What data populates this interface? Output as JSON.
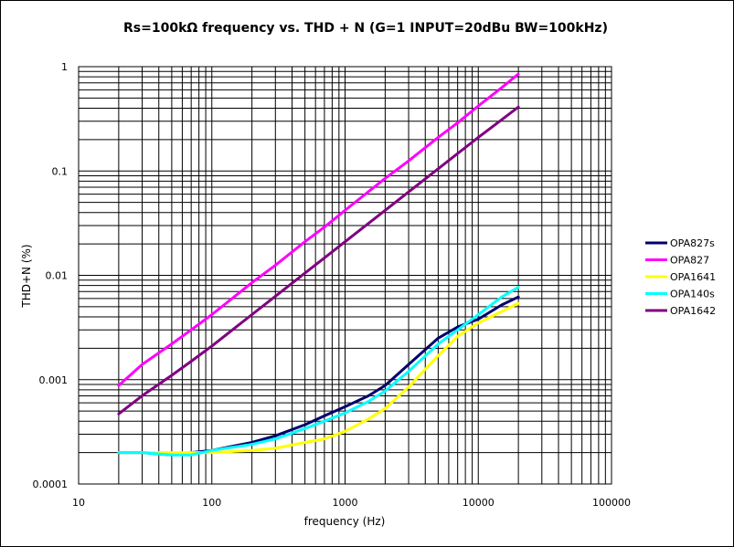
{
  "chart_data": {
    "type": "line",
    "title": "Rs=100kΩ frequency vs. THD + N (G=1 INPUT=20dBu BW=100kHz)",
    "xlabel": "frequency (Hz)",
    "ylabel": "THD+N (%)",
    "xscale": "log",
    "yscale": "log",
    "xlim": [
      10,
      100000
    ],
    "ylim": [
      0.0001,
      1
    ],
    "xticks": [
      10,
      100,
      1000,
      10000,
      100000
    ],
    "xtick_labels": [
      "10",
      "100",
      "1000",
      "10000",
      "100000"
    ],
    "yticks": [
      0.0001,
      0.001,
      0.01,
      0.1,
      1
    ],
    "ytick_labels": [
      "0.0001",
      "0.001",
      "0.01",
      "0.1",
      "1"
    ],
    "grid": true,
    "legend_position": "right",
    "series": [
      {
        "name": "OPA827s",
        "color": "#00006e",
        "x": [
          20,
          30,
          50,
          70,
          100,
          200,
          300,
          500,
          700,
          1000,
          1500,
          2000,
          3000,
          5000,
          7000,
          10000,
          15000,
          20000
        ],
        "y": [
          0.0002,
          0.0002,
          0.00019,
          0.0002,
          0.00021,
          0.00025,
          0.00029,
          0.00037,
          0.00045,
          0.00055,
          0.0007,
          0.00088,
          0.0014,
          0.0025,
          0.0032,
          0.0038,
          0.0052,
          0.0062
        ]
      },
      {
        "name": "OPA827",
        "color": "#ff00ff",
        "x": [
          20,
          30,
          50,
          70,
          100,
          200,
          300,
          500,
          700,
          1000,
          2000,
          3000,
          5000,
          7000,
          10000,
          15000,
          20000
        ],
        "y": [
          0.00088,
          0.0014,
          0.0022,
          0.003,
          0.0042,
          0.0085,
          0.0125,
          0.021,
          0.029,
          0.042,
          0.085,
          0.125,
          0.21,
          0.29,
          0.42,
          0.63,
          0.85
        ]
      },
      {
        "name": "OPA1641",
        "color": "#ffff00",
        "x": [
          20,
          30,
          50,
          70,
          100,
          200,
          300,
          500,
          700,
          1000,
          1500,
          2000,
          3000,
          5000,
          7000,
          10000,
          15000,
          20000
        ],
        "y": [
          0.0002,
          0.0002,
          0.0002,
          0.0002,
          0.0002,
          0.00021,
          0.00022,
          0.00025,
          0.00027,
          0.00032,
          0.00042,
          0.00053,
          0.00085,
          0.0017,
          0.0026,
          0.0035,
          0.0045,
          0.0054
        ]
      },
      {
        "name": "OPA140s",
        "color": "#00ffff",
        "x": [
          20,
          30,
          50,
          70,
          100,
          200,
          300,
          500,
          700,
          1000,
          1500,
          2000,
          3000,
          5000,
          7000,
          10000,
          15000,
          20000
        ],
        "y": [
          0.0002,
          0.0002,
          0.00019,
          0.00019,
          0.00021,
          0.00024,
          0.00027,
          0.00034,
          0.0004,
          0.00048,
          0.00062,
          0.00078,
          0.0012,
          0.0022,
          0.003,
          0.0042,
          0.0062,
          0.0077
        ]
      },
      {
        "name": "OPA1642",
        "color": "#800080",
        "x": [
          20,
          30,
          50,
          70,
          100,
          200,
          300,
          500,
          700,
          1000,
          2000,
          3000,
          5000,
          7000,
          10000,
          15000,
          20000
        ],
        "y": [
          0.00047,
          0.0007,
          0.0011,
          0.0015,
          0.0021,
          0.0042,
          0.0063,
          0.0105,
          0.0147,
          0.021,
          0.042,
          0.063,
          0.105,
          0.147,
          0.21,
          0.31,
          0.41
        ]
      }
    ]
  }
}
